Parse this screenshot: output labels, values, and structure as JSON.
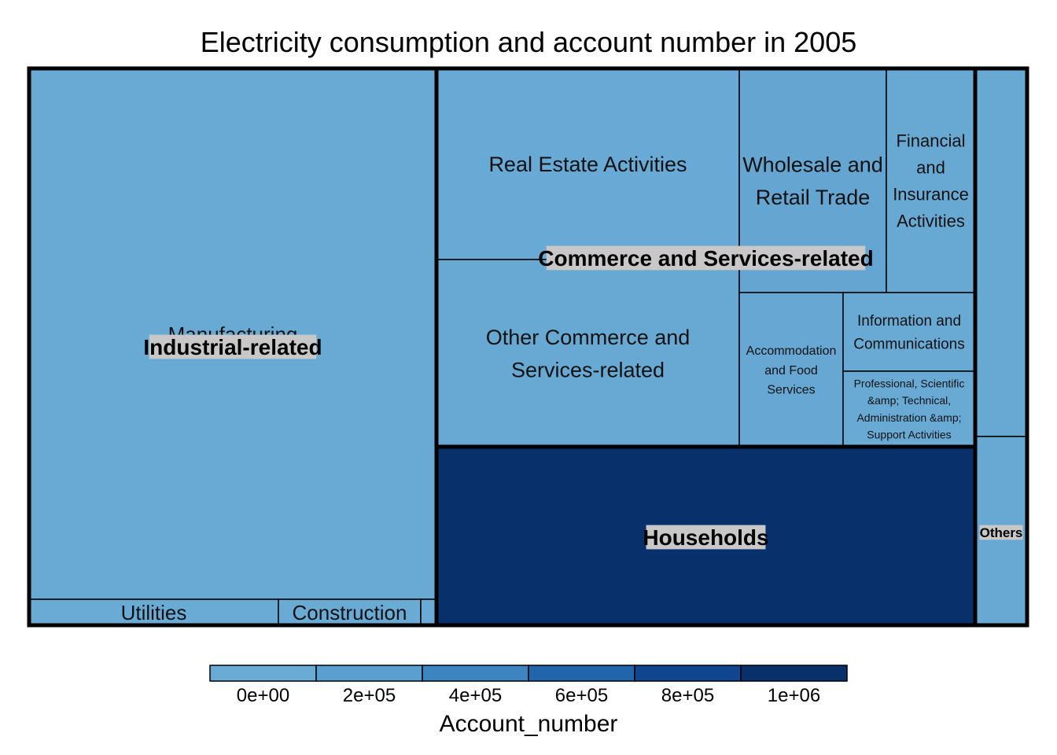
{
  "chart_data": {
    "type": "treemap",
    "title": "Electricity consumption and account number in 2005",
    "size_variable": "",
    "color_variable": "Account_number",
    "groups": [
      {
        "name": "Industrial-related",
        "children": [
          {
            "name": "Manufacturing",
            "account_number": 10000
          },
          {
            "name": "Utilities",
            "account_number": 800
          },
          {
            "name": "Construction",
            "account_number": 3000
          },
          {
            "name": "",
            "account_number": 500
          }
        ]
      },
      {
        "name": "Commerce and Services-related",
        "children": [
          {
            "name": "Real Estate Activities",
            "account_number": 15000
          },
          {
            "name": "Other Commerce and Services-related",
            "account_number": 20000
          },
          {
            "name": "Wholesale and Retail Trade",
            "account_number": 60000
          },
          {
            "name": "Financial and Insurance Activities",
            "account_number": 20000
          },
          {
            "name": "Accommodation and Food Services",
            "account_number": 35000
          },
          {
            "name": "Information and Communications",
            "account_number": 8000
          },
          {
            "name": "Professional, Scientific &amp; Technical, Administration &amp; Support Activities",
            "account_number": 12000
          }
        ]
      },
      {
        "name": "Households",
        "children": [
          {
            "name": "",
            "account_number": 1200000
          }
        ]
      },
      {
        "name": "Others",
        "children": [
          {
            "name": "",
            "account_number": 20000
          },
          {
            "name": "",
            "account_number": 20000
          }
        ]
      }
    ],
    "legend": {
      "title": "Account_number",
      "placement": "bottom",
      "range": [
        0,
        1200000
      ],
      "ticks": [
        {
          "value": 0,
          "label": "0e+00"
        },
        {
          "value": 200000,
          "label": "2e+05"
        },
        {
          "value": 400000,
          "label": "4e+05"
        },
        {
          "value": 600000,
          "label": "6e+05"
        },
        {
          "value": 800000,
          "label": "8e+05"
        },
        {
          "value": 1000000,
          "label": "1e+06"
        }
      ],
      "colors": [
        "#6aabd6",
        "#5a9fcf",
        "#3d85c1",
        "#2166ac",
        "#10468f",
        "#08306b"
      ]
    },
    "colors": {
      "low": "#6aabd6",
      "high": "#08306b",
      "label_bg": "#c8c8c8"
    }
  }
}
